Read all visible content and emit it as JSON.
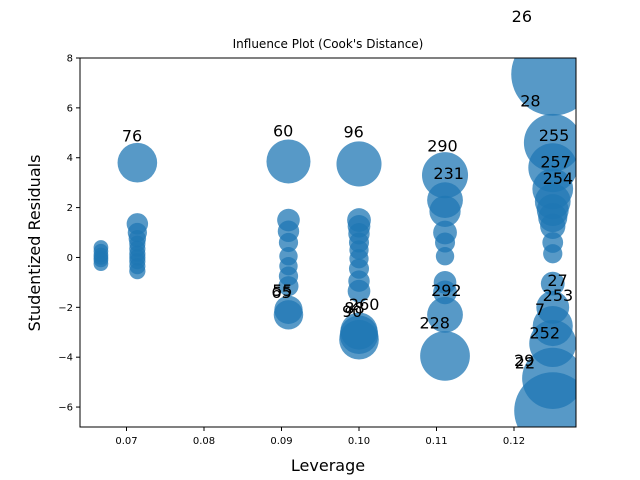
{
  "chart_data": {
    "type": "scatter",
    "title": "Influence Plot (Cook's Distance)",
    "xlabel": "Leverage",
    "ylabel": "Studentized Residuals",
    "xlim": [
      0.064,
      0.128
    ],
    "ylim": [
      -6.8,
      8.0
    ],
    "xticks": [
      0.07,
      0.08,
      0.09,
      0.1,
      0.11,
      0.12
    ],
    "xtick_labels": [
      "0.07",
      "0.08",
      "0.09",
      "0.10",
      "0.11",
      "0.12"
    ],
    "yticks": [
      -6,
      -4,
      -2,
      0,
      2,
      4,
      6,
      8
    ],
    "ytick_labels": [
      "−6",
      "−4",
      "−2",
      "0",
      "2",
      "4",
      "6",
      "8"
    ],
    "point_color": "#1f77b4",
    "points": [
      {
        "x": 0.0667,
        "y": 0.4,
        "cooks": 0.01
      },
      {
        "x": 0.0667,
        "y": 0.25,
        "cooks": 0.01
      },
      {
        "x": 0.0667,
        "y": 0.1,
        "cooks": 0.01
      },
      {
        "x": 0.0667,
        "y": 0.0,
        "cooks": 0.01
      },
      {
        "x": 0.0667,
        "y": -0.1,
        "cooks": 0.01
      },
      {
        "x": 0.0667,
        "y": -0.25,
        "cooks": 0.01
      },
      {
        "x": 0.0714,
        "y": 3.8,
        "cooks": 0.6
      },
      {
        "x": 0.0714,
        "y": 1.35,
        "cooks": 0.08
      },
      {
        "x": 0.0714,
        "y": 1.0,
        "cooks": 0.05
      },
      {
        "x": 0.0714,
        "y": 0.75,
        "cooks": 0.03
      },
      {
        "x": 0.0714,
        "y": 0.55,
        "cooks": 0.02
      },
      {
        "x": 0.0714,
        "y": 0.35,
        "cooks": 0.02
      },
      {
        "x": 0.0714,
        "y": 0.15,
        "cooks": 0.02
      },
      {
        "x": 0.0714,
        "y": 0.0,
        "cooks": 0.02
      },
      {
        "x": 0.0714,
        "y": -0.15,
        "cooks": 0.02
      },
      {
        "x": 0.0714,
        "y": -0.35,
        "cooks": 0.02
      },
      {
        "x": 0.0714,
        "y": -0.55,
        "cooks": 0.02
      },
      {
        "x": 0.0909,
        "y": 3.85,
        "cooks": 0.8
      },
      {
        "x": 0.0909,
        "y": 1.5,
        "cooks": 0.1
      },
      {
        "x": 0.0909,
        "y": 1.05,
        "cooks": 0.08
      },
      {
        "x": 0.0909,
        "y": 0.6,
        "cooks": 0.05
      },
      {
        "x": 0.0909,
        "y": 0.05,
        "cooks": 0.04
      },
      {
        "x": 0.0909,
        "y": -0.35,
        "cooks": 0.04
      },
      {
        "x": 0.0909,
        "y": -0.75,
        "cooks": 0.05
      },
      {
        "x": 0.0909,
        "y": -1.15,
        "cooks": 0.06
      },
      {
        "x": 0.0909,
        "y": -2.1,
        "cooks": 0.22
      },
      {
        "x": 0.0909,
        "y": -2.3,
        "cooks": 0.25
      },
      {
        "x": 0.1,
        "y": 3.75,
        "cooks": 0.85
      },
      {
        "x": 0.1,
        "y": 1.5,
        "cooks": 0.12
      },
      {
        "x": 0.1,
        "y": 1.25,
        "cooks": 0.1
      },
      {
        "x": 0.1,
        "y": 0.95,
        "cooks": 0.08
      },
      {
        "x": 0.1,
        "y": 0.6,
        "cooks": 0.06
      },
      {
        "x": 0.1,
        "y": 0.3,
        "cooks": 0.05
      },
      {
        "x": 0.1,
        "y": -0.05,
        "cooks": 0.05
      },
      {
        "x": 0.1,
        "y": -0.45,
        "cooks": 0.06
      },
      {
        "x": 0.1,
        "y": -0.95,
        "cooks": 0.08
      },
      {
        "x": 0.1,
        "y": -1.35,
        "cooks": 0.1
      },
      {
        "x": 0.1,
        "y": -2.95,
        "cooks": 0.5
      },
      {
        "x": 0.1,
        "y": -3.1,
        "cooks": 0.55
      },
      {
        "x": 0.1,
        "y": -3.3,
        "cooks": 0.6
      },
      {
        "x": 0.1111,
        "y": 3.3,
        "cooks": 0.9
      },
      {
        "x": 0.1111,
        "y": 2.3,
        "cooks": 0.45
      },
      {
        "x": 0.1111,
        "y": 1.85,
        "cooks": 0.3
      },
      {
        "x": 0.1111,
        "y": 1.0,
        "cooks": 0.12
      },
      {
        "x": 0.1111,
        "y": 0.6,
        "cooks": 0.06
      },
      {
        "x": 0.1111,
        "y": 0.05,
        "cooks": 0.04
      },
      {
        "x": 0.1111,
        "y": -1.0,
        "cooks": 0.1
      },
      {
        "x": 0.1111,
        "y": -1.4,
        "cooks": 0.12
      },
      {
        "x": 0.1111,
        "y": -2.3,
        "cooks": 0.45
      },
      {
        "x": 0.1111,
        "y": -3.95,
        "cooks": 1.1
      },
      {
        "x": 0.125,
        "y": 7.35,
        "cooks": 3.8
      },
      {
        "x": 0.125,
        "y": 4.6,
        "cooks": 1.6
      },
      {
        "x": 0.125,
        "y": 3.6,
        "cooks": 1.05
      },
      {
        "x": 0.125,
        "y": 2.75,
        "cooks": 0.65
      },
      {
        "x": 0.125,
        "y": 2.25,
        "cooks": 0.45
      },
      {
        "x": 0.125,
        "y": 1.9,
        "cooks": 0.32
      },
      {
        "x": 0.125,
        "y": 1.6,
        "cooks": 0.24
      },
      {
        "x": 0.125,
        "y": 1.25,
        "cooks": 0.15
      },
      {
        "x": 0.125,
        "y": 0.6,
        "cooks": 0.07
      },
      {
        "x": 0.125,
        "y": 0.15,
        "cooks": 0.05
      },
      {
        "x": 0.125,
        "y": -1.05,
        "cooks": 0.12
      },
      {
        "x": 0.125,
        "y": -2.0,
        "cooks": 0.35
      },
      {
        "x": 0.125,
        "y": -2.75,
        "cooks": 0.62
      },
      {
        "x": 0.125,
        "y": -3.45,
        "cooks": 0.95
      },
      {
        "x": 0.125,
        "y": -4.85,
        "cooks": 1.85
      },
      {
        "x": 0.125,
        "y": -6.15,
        "cooks": 3.2
      }
    ],
    "annotations": [
      {
        "text": "26",
        "x": 0.1197,
        "y": 9.45
      },
      {
        "text": "76",
        "x": 0.0694,
        "y": 4.65
      },
      {
        "text": "60",
        "x": 0.0889,
        "y": 4.85
      },
      {
        "text": "96",
        "x": 0.098,
        "y": 4.82
      },
      {
        "text": "290",
        "x": 0.1088,
        "y": 4.25
      },
      {
        "text": "28",
        "x": 0.1208,
        "y": 6.05
      },
      {
        "text": "255",
        "x": 0.1232,
        "y": 4.68
      },
      {
        "text": "257",
        "x": 0.1234,
        "y": 3.6
      },
      {
        "text": "231",
        "x": 0.1096,
        "y": 3.15
      },
      {
        "text": "254",
        "x": 0.1237,
        "y": 2.95
      },
      {
        "text": "55",
        "x": 0.0888,
        "y": -1.55
      },
      {
        "text": "65",
        "x": 0.0887,
        "y": -1.62
      },
      {
        "text": "260",
        "x": 0.0987,
        "y": -2.1
      },
      {
        "text": "88",
        "x": 0.0981,
        "y": -2.25
      },
      {
        "text": "90",
        "x": 0.0978,
        "y": -2.38
      },
      {
        "text": "292",
        "x": 0.1093,
        "y": -1.55
      },
      {
        "text": "27",
        "x": 0.1243,
        "y": -1.15
      },
      {
        "text": "253",
        "x": 0.1237,
        "y": -1.75
      },
      {
        "text": "7",
        "x": 0.1227,
        "y": -2.3
      },
      {
        "text": "228",
        "x": 0.1078,
        "y": -2.85
      },
      {
        "text": "252",
        "x": 0.122,
        "y": -3.25
      },
      {
        "text": "29",
        "x": 0.12,
        "y": -4.35
      },
      {
        "text": "22",
        "x": 0.1201,
        "y": -4.45
      }
    ]
  }
}
